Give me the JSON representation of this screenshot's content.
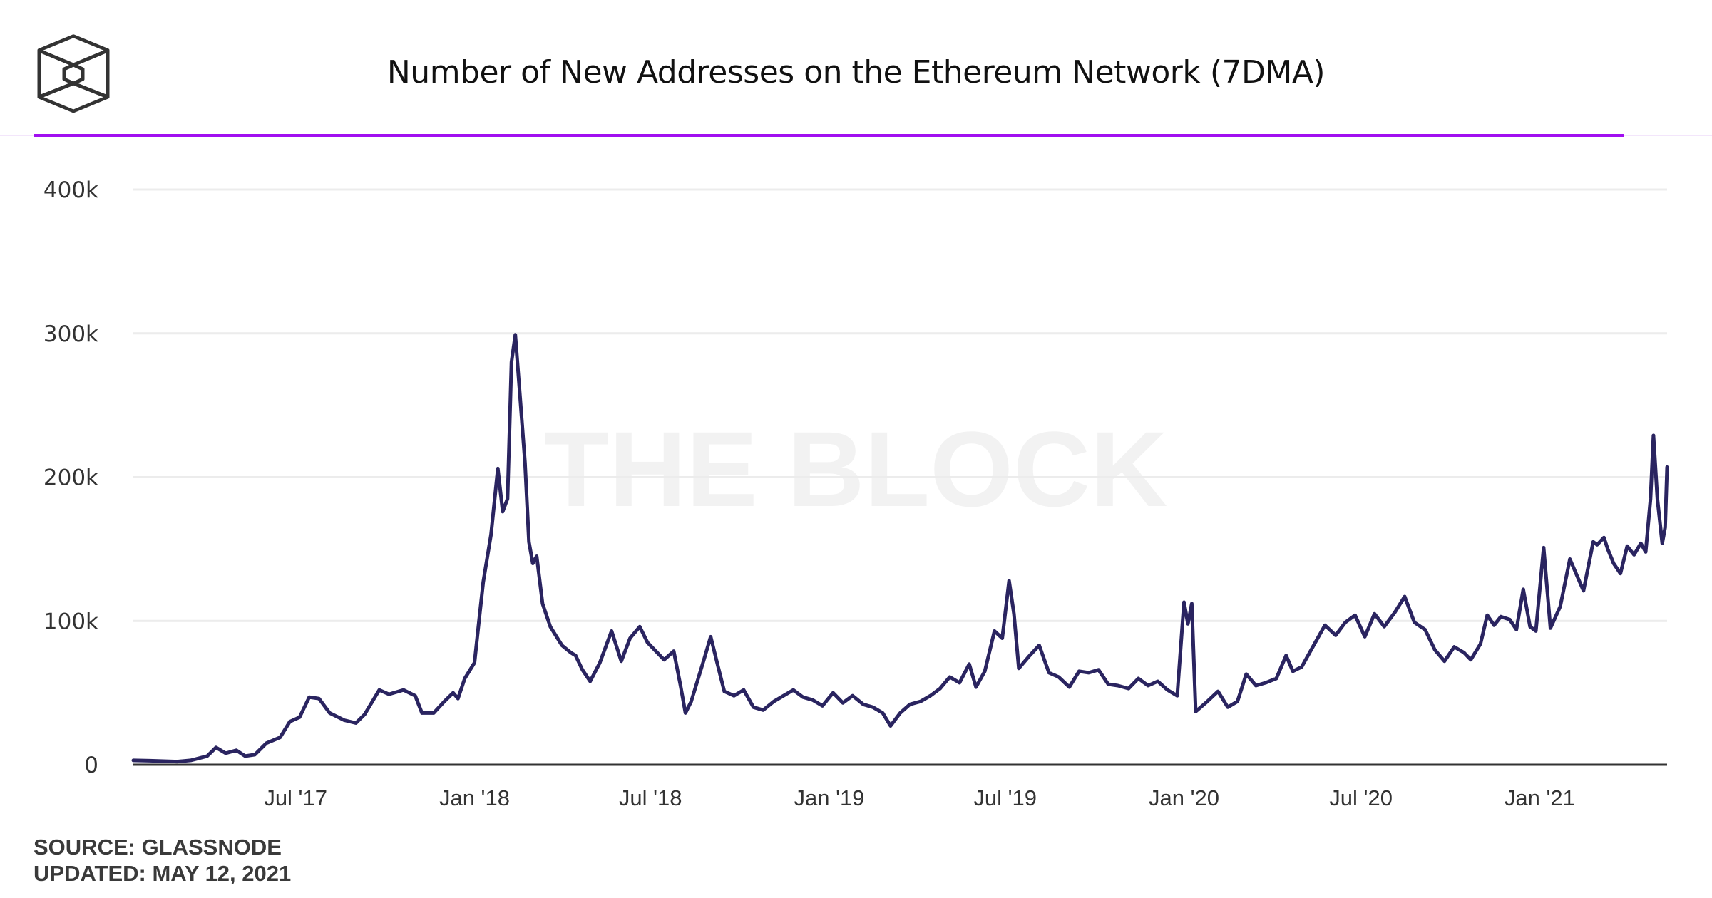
{
  "header": {
    "logo_icon": "the-block-cube-logo",
    "title": "Number of New Addresses on the Ethereum Network (7DMA)"
  },
  "footer": {
    "source": "SOURCE: GLASSNODE",
    "updated": "UPDATED: MAY 12, 2021"
  },
  "colors": {
    "line": "#2a2460",
    "accent_rule": "#a10ef0",
    "grid": "#ececec",
    "axis": "#333333"
  },
  "chart_data": {
    "type": "line",
    "title": "Number of New Addresses on the Ethereum Network (7DMA)",
    "xlabel": "",
    "ylabel": "",
    "watermark": "THE BLOCK",
    "ylim": [
      0,
      400000
    ],
    "yticks": [
      0,
      100000,
      200000,
      300000,
      400000
    ],
    "ytick_labels": [
      "0",
      "100k",
      "200k",
      "300k",
      "400k"
    ],
    "xlim": [
      "2017-01-15",
      "2021-05-12"
    ],
    "xticks": [
      "2017-07-01",
      "2018-01-01",
      "2018-07-01",
      "2019-01-01",
      "2019-07-01",
      "2020-01-01",
      "2020-07-01",
      "2021-01-01"
    ],
    "xtick_labels": [
      "Jul '17",
      "Jan '18",
      "Jul '18",
      "Jan '19",
      "Jul '19",
      "Jan '20",
      "Jul '20",
      "Jan '21"
    ],
    "grid": true,
    "legend": "none",
    "series": [
      {
        "name": "New Addresses (7DMA)",
        "points": [
          [
            "2017-01-15",
            3000
          ],
          [
            "2017-02-01",
            2800
          ],
          [
            "2017-02-15",
            2500
          ],
          [
            "2017-03-01",
            2200
          ],
          [
            "2017-03-15",
            3000
          ],
          [
            "2017-04-01",
            6000
          ],
          [
            "2017-04-10",
            12000
          ],
          [
            "2017-04-20",
            8000
          ],
          [
            "2017-05-01",
            10000
          ],
          [
            "2017-05-10",
            6000
          ],
          [
            "2017-05-20",
            7000
          ],
          [
            "2017-06-01",
            15000
          ],
          [
            "2017-06-15",
            19000
          ],
          [
            "2017-06-25",
            30000
          ],
          [
            "2017-07-05",
            33000
          ],
          [
            "2017-07-15",
            47000
          ],
          [
            "2017-07-25",
            46000
          ],
          [
            "2017-08-05",
            36000
          ],
          [
            "2017-08-20",
            31000
          ],
          [
            "2017-09-01",
            29000
          ],
          [
            "2017-09-10",
            35000
          ],
          [
            "2017-09-25",
            52000
          ],
          [
            "2017-10-05",
            49000
          ],
          [
            "2017-10-20",
            52000
          ],
          [
            "2017-11-01",
            48000
          ],
          [
            "2017-11-08",
            36000
          ],
          [
            "2017-11-20",
            36000
          ],
          [
            "2017-12-01",
            44000
          ],
          [
            "2017-12-10",
            50000
          ],
          [
            "2017-12-15",
            46000
          ],
          [
            "2017-12-22",
            60000
          ],
          [
            "2018-01-01",
            71000
          ],
          [
            "2018-01-05",
            96000
          ],
          [
            "2018-01-10",
            127000
          ],
          [
            "2018-01-18",
            160000
          ],
          [
            "2018-01-25",
            206000
          ],
          [
            "2018-01-30",
            176000
          ],
          [
            "2018-02-04",
            185000
          ],
          [
            "2018-02-08",
            280000
          ],
          [
            "2018-02-12",
            299000
          ],
          [
            "2018-02-17",
            255000
          ],
          [
            "2018-02-22",
            210000
          ],
          [
            "2018-02-26",
            155000
          ],
          [
            "2018-03-02",
            140000
          ],
          [
            "2018-03-06",
            145000
          ],
          [
            "2018-03-12",
            112000
          ],
          [
            "2018-03-20",
            96000
          ],
          [
            "2018-04-01",
            83000
          ],
          [
            "2018-04-10",
            78000
          ],
          [
            "2018-04-15",
            76000
          ],
          [
            "2018-04-22",
            66000
          ],
          [
            "2018-04-30",
            58000
          ],
          [
            "2018-05-10",
            71000
          ],
          [
            "2018-05-22",
            93000
          ],
          [
            "2018-06-01",
            72000
          ],
          [
            "2018-06-10",
            88000
          ],
          [
            "2018-06-20",
            96000
          ],
          [
            "2018-06-28",
            85000
          ],
          [
            "2018-07-08",
            78000
          ],
          [
            "2018-07-15",
            73000
          ],
          [
            "2018-07-25",
            79000
          ],
          [
            "2018-08-01",
            55000
          ],
          [
            "2018-08-06",
            36000
          ],
          [
            "2018-08-12",
            44000
          ],
          [
            "2018-08-25",
            73000
          ],
          [
            "2018-09-01",
            89000
          ],
          [
            "2018-09-08",
            70000
          ],
          [
            "2018-09-15",
            51000
          ],
          [
            "2018-09-25",
            48000
          ],
          [
            "2018-10-05",
            52000
          ],
          [
            "2018-10-15",
            40000
          ],
          [
            "2018-10-25",
            38000
          ],
          [
            "2018-11-05",
            44000
          ],
          [
            "2018-11-15",
            48000
          ],
          [
            "2018-11-25",
            52000
          ],
          [
            "2018-12-05",
            47000
          ],
          [
            "2018-12-15",
            45000
          ],
          [
            "2018-12-25",
            41000
          ],
          [
            "2019-01-05",
            50000
          ],
          [
            "2019-01-15",
            43000
          ],
          [
            "2019-01-25",
            48000
          ],
          [
            "2019-02-05",
            42000
          ],
          [
            "2019-02-15",
            40000
          ],
          [
            "2019-02-25",
            36000
          ],
          [
            "2019-03-05",
            27000
          ],
          [
            "2019-03-15",
            36000
          ],
          [
            "2019-03-25",
            42000
          ],
          [
            "2019-04-05",
            44000
          ],
          [
            "2019-04-15",
            48000
          ],
          [
            "2019-04-25",
            53000
          ],
          [
            "2019-05-05",
            61000
          ],
          [
            "2019-05-15",
            57000
          ],
          [
            "2019-05-25",
            70000
          ],
          [
            "2019-06-01",
            54000
          ],
          [
            "2019-06-10",
            65000
          ],
          [
            "2019-06-20",
            93000
          ],
          [
            "2019-06-28",
            88000
          ],
          [
            "2019-07-05",
            128000
          ],
          [
            "2019-07-10",
            105000
          ],
          [
            "2019-07-15",
            67000
          ],
          [
            "2019-07-25",
            75000
          ],
          [
            "2019-08-05",
            83000
          ],
          [
            "2019-08-15",
            64000
          ],
          [
            "2019-08-25",
            61000
          ],
          [
            "2019-09-05",
            54000
          ],
          [
            "2019-09-15",
            65000
          ],
          [
            "2019-09-25",
            64000
          ],
          [
            "2019-10-05",
            66000
          ],
          [
            "2019-10-15",
            56000
          ],
          [
            "2019-10-25",
            55000
          ],
          [
            "2019-11-05",
            53000
          ],
          [
            "2019-11-15",
            60000
          ],
          [
            "2019-11-25",
            55000
          ],
          [
            "2019-12-05",
            58000
          ],
          [
            "2019-12-15",
            52000
          ],
          [
            "2019-12-25",
            48000
          ],
          [
            "2020-01-01",
            113000
          ],
          [
            "2020-01-05",
            98000
          ],
          [
            "2020-01-09",
            112000
          ],
          [
            "2020-01-13",
            37000
          ],
          [
            "2020-01-25",
            44000
          ],
          [
            "2020-02-05",
            51000
          ],
          [
            "2020-02-15",
            40000
          ],
          [
            "2020-02-25",
            44000
          ],
          [
            "2020-03-05",
            63000
          ],
          [
            "2020-03-15",
            55000
          ],
          [
            "2020-03-25",
            57000
          ],
          [
            "2020-04-05",
            60000
          ],
          [
            "2020-04-15",
            76000
          ],
          [
            "2020-04-22",
            65000
          ],
          [
            "2020-05-01",
            68000
          ],
          [
            "2020-05-15",
            85000
          ],
          [
            "2020-05-25",
            97000
          ],
          [
            "2020-06-05",
            90000
          ],
          [
            "2020-06-15",
            99000
          ],
          [
            "2020-06-25",
            104000
          ],
          [
            "2020-07-05",
            89000
          ],
          [
            "2020-07-15",
            105000
          ],
          [
            "2020-07-25",
            96000
          ],
          [
            "2020-08-05",
            106000
          ],
          [
            "2020-08-15",
            117000
          ],
          [
            "2020-08-25",
            99000
          ],
          [
            "2020-09-05",
            94000
          ],
          [
            "2020-09-15",
            80000
          ],
          [
            "2020-09-25",
            72000
          ],
          [
            "2020-10-05",
            82000
          ],
          [
            "2020-10-15",
            78000
          ],
          [
            "2020-10-22",
            73000
          ],
          [
            "2020-11-01",
            84000
          ],
          [
            "2020-11-08",
            104000
          ],
          [
            "2020-11-15",
            97000
          ],
          [
            "2020-11-22",
            103000
          ],
          [
            "2020-12-01",
            101000
          ],
          [
            "2020-12-08",
            94000
          ],
          [
            "2020-12-15",
            122000
          ],
          [
            "2020-12-22",
            96000
          ],
          [
            "2020-12-28",
            93000
          ],
          [
            "2021-01-05",
            151000
          ],
          [
            "2021-01-12",
            95000
          ],
          [
            "2021-01-22",
            110000
          ],
          [
            "2021-02-01",
            143000
          ],
          [
            "2021-02-08",
            132000
          ],
          [
            "2021-02-15",
            121000
          ],
          [
            "2021-02-25",
            155000
          ],
          [
            "2021-03-01",
            153000
          ],
          [
            "2021-03-08",
            158000
          ],
          [
            "2021-03-12",
            150000
          ],
          [
            "2021-03-18",
            140000
          ],
          [
            "2021-03-25",
            133000
          ],
          [
            "2021-04-01",
            152000
          ],
          [
            "2021-04-08",
            146000
          ],
          [
            "2021-04-15",
            154000
          ],
          [
            "2021-04-20",
            148000
          ],
          [
            "2021-04-25",
            185000
          ],
          [
            "2021-04-28",
            229000
          ],
          [
            "2021-05-02",
            185000
          ],
          [
            "2021-05-07",
            154000
          ],
          [
            "2021-05-10",
            165000
          ],
          [
            "2021-05-12",
            207000
          ]
        ]
      }
    ]
  }
}
